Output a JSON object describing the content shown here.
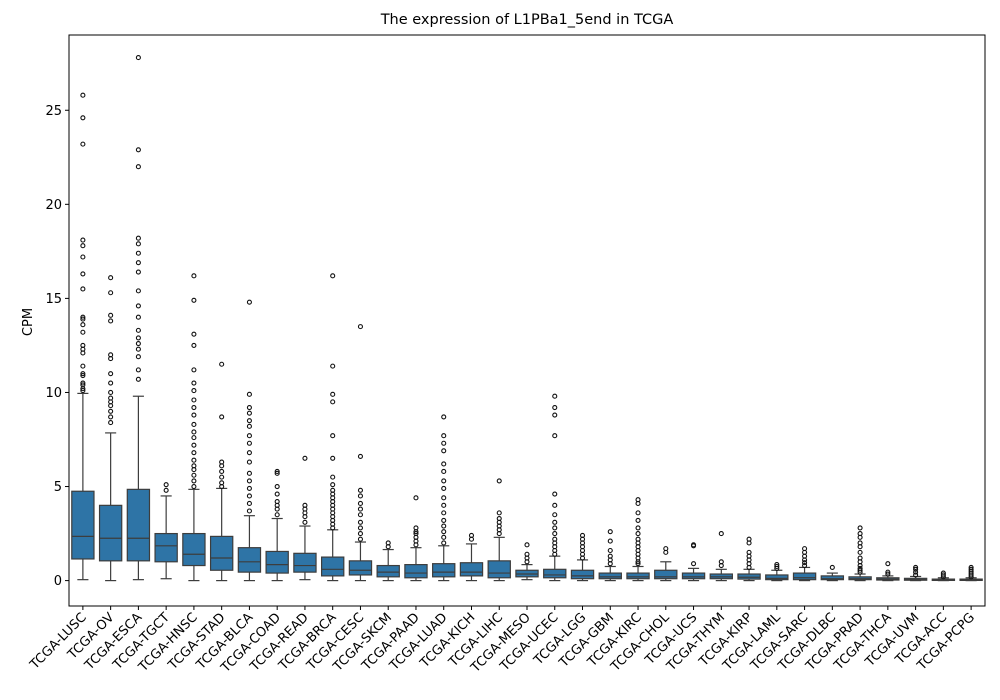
{
  "chart_data": {
    "type": "box",
    "title": "The expression of L1PBa1_5end in TCGA",
    "xlabel": "",
    "ylabel": "CPM",
    "ylim": [
      -1.35,
      29.0
    ],
    "yticks": [
      0,
      5,
      10,
      15,
      20,
      25
    ],
    "grid": false,
    "legend": "none",
    "box_color": "#2e74a6",
    "categories": [
      "TCGA-LUSC",
      "TCGA-OV",
      "TCGA-ESCA",
      "TCGA-TGCT",
      "TCGA-HNSC",
      "TCGA-STAD",
      "TCGA-BLCA",
      "TCGA-COAD",
      "TCGA-READ",
      "TCGA-BRCA",
      "TCGA-CESC",
      "TCGA-SKCM",
      "TCGA-PAAD",
      "TCGA-LUAD",
      "TCGA-KICH",
      "TCGA-LIHC",
      "TCGA-MESO",
      "TCGA-UCEC",
      "TCGA-LGG",
      "TCGA-GBM",
      "TCGA-KIRC",
      "TCGA-CHOL",
      "TCGA-UCS",
      "TCGA-THYM",
      "TCGA-KIRP",
      "TCGA-LAML",
      "TCGA-SARC",
      "TCGA-DLBC",
      "TCGA-PRAD",
      "TCGA-THCA",
      "TCGA-UVM",
      "TCGA-ACC",
      "TCGA-PCPG"
    ],
    "boxes": [
      {
        "whisker_low": 0.05,
        "q1": 1.15,
        "median": 2.35,
        "q3": 4.75,
        "whisker_high": 9.95,
        "outliers": [
          10.1,
          10.2,
          10.4,
          10.5,
          10.9,
          11.0,
          11.4,
          12.1,
          12.3,
          12.5,
          13.2,
          13.6,
          13.9,
          14.0,
          15.5,
          16.3,
          17.2,
          17.8,
          18.1,
          23.2,
          24.6,
          25.8
        ]
      },
      {
        "whisker_low": 0.0,
        "q1": 1.05,
        "median": 2.25,
        "q3": 4.0,
        "whisker_high": 7.85,
        "outliers": [
          8.4,
          8.7,
          9.0,
          9.3,
          9.5,
          9.7,
          10.0,
          10.5,
          11.0,
          11.8,
          12.0,
          13.8,
          14.1,
          15.3,
          16.1
        ]
      },
      {
        "whisker_low": 0.05,
        "q1": 1.05,
        "median": 2.25,
        "q3": 4.85,
        "whisker_high": 9.8,
        "outliers": [
          10.7,
          11.2,
          11.9,
          12.3,
          12.6,
          12.9,
          13.3,
          14.0,
          14.6,
          15.4,
          16.4,
          16.9,
          17.4,
          17.9,
          18.2,
          22.0,
          22.9,
          27.8
        ]
      },
      {
        "whisker_low": 0.1,
        "q1": 1.0,
        "median": 1.85,
        "q3": 2.5,
        "whisker_high": 4.5,
        "outliers": [
          4.8,
          5.1
        ]
      },
      {
        "whisker_low": 0.0,
        "q1": 0.8,
        "median": 1.4,
        "q3": 2.5,
        "whisker_high": 4.85,
        "outliers": [
          5.0,
          5.3,
          5.6,
          5.9,
          6.1,
          6.4,
          6.8,
          7.2,
          7.6,
          7.9,
          8.3,
          8.8,
          9.2,
          9.6,
          10.1,
          10.5,
          11.2,
          12.5,
          13.1,
          14.9,
          16.2
        ]
      },
      {
        "whisker_low": 0.0,
        "q1": 0.55,
        "median": 1.2,
        "q3": 2.35,
        "whisker_high": 4.9,
        "outliers": [
          5.0,
          5.2,
          5.5,
          5.8,
          6.1,
          6.3,
          8.7,
          11.5
        ]
      },
      {
        "whisker_low": 0.0,
        "q1": 0.45,
        "median": 1.0,
        "q3": 1.75,
        "whisker_high": 3.45,
        "outliers": [
          3.7,
          4.1,
          4.5,
          4.9,
          5.3,
          5.7,
          6.3,
          6.8,
          7.3,
          7.7,
          8.2,
          8.5,
          8.9,
          9.2,
          9.9,
          14.8
        ]
      },
      {
        "whisker_low": 0.0,
        "q1": 0.4,
        "median": 0.85,
        "q3": 1.55,
        "whisker_high": 3.3,
        "outliers": [
          3.5,
          3.8,
          4.0,
          4.2,
          4.6,
          5.0,
          5.7,
          5.8
        ]
      },
      {
        "whisker_low": 0.05,
        "q1": 0.45,
        "median": 0.8,
        "q3": 1.45,
        "whisker_high": 2.9,
        "outliers": [
          3.1,
          3.4,
          3.6,
          3.8,
          4.0,
          6.5
        ]
      },
      {
        "whisker_low": 0.0,
        "q1": 0.25,
        "median": 0.6,
        "q3": 1.25,
        "whisker_high": 2.7,
        "outliers": [
          2.8,
          3.0,
          3.2,
          3.4,
          3.6,
          3.8,
          4.0,
          4.2,
          4.4,
          4.6,
          4.8,
          5.1,
          5.5,
          6.5,
          7.7,
          9.5,
          9.9,
          11.4,
          16.2
        ]
      },
      {
        "whisker_low": 0.0,
        "q1": 0.3,
        "median": 0.55,
        "q3": 1.05,
        "whisker_high": 2.05,
        "outliers": [
          2.2,
          2.5,
          2.8,
          3.1,
          3.5,
          3.8,
          4.1,
          4.5,
          4.8,
          6.6,
          13.5
        ]
      },
      {
        "whisker_low": 0.0,
        "q1": 0.2,
        "median": 0.45,
        "q3": 0.8,
        "whisker_high": 1.65,
        "outliers": [
          1.8,
          2.0
        ]
      },
      {
        "whisker_low": 0.0,
        "q1": 0.15,
        "median": 0.4,
        "q3": 0.85,
        "whisker_high": 1.75,
        "outliers": [
          1.9,
          2.1,
          2.3,
          2.5,
          2.6,
          2.8,
          4.4
        ]
      },
      {
        "whisker_low": 0.0,
        "q1": 0.2,
        "median": 0.45,
        "q3": 0.9,
        "whisker_high": 1.85,
        "outliers": [
          2.0,
          2.3,
          2.6,
          2.9,
          3.2,
          3.6,
          4.0,
          4.4,
          4.9,
          5.3,
          5.8,
          6.2,
          6.9,
          7.3,
          7.7,
          8.7
        ]
      },
      {
        "whisker_low": 0.0,
        "q1": 0.25,
        "median": 0.45,
        "q3": 0.95,
        "whisker_high": 1.95,
        "outliers": [
          2.2,
          2.4
        ]
      },
      {
        "whisker_low": 0.0,
        "q1": 0.15,
        "median": 0.4,
        "q3": 1.05,
        "whisker_high": 2.3,
        "outliers": [
          2.5,
          2.7,
          2.9,
          3.1,
          3.3,
          3.6,
          5.3
        ]
      },
      {
        "whisker_low": 0.05,
        "q1": 0.2,
        "median": 0.35,
        "q3": 0.55,
        "whisker_high": 0.85,
        "outliers": [
          1.0,
          1.2,
          1.4,
          1.9
        ]
      },
      {
        "whisker_low": 0.0,
        "q1": 0.15,
        "median": 0.3,
        "q3": 0.6,
        "whisker_high": 1.3,
        "outliers": [
          1.4,
          1.6,
          1.8,
          2.0,
          2.2,
          2.5,
          2.8,
          3.1,
          3.5,
          4.0,
          4.6,
          7.7,
          8.8,
          9.2,
          9.8
        ]
      },
      {
        "whisker_low": 0.0,
        "q1": 0.1,
        "median": 0.25,
        "q3": 0.55,
        "whisker_high": 1.1,
        "outliers": [
          1.2,
          1.4,
          1.6,
          1.8,
          2.0,
          2.2,
          2.4
        ]
      },
      {
        "whisker_low": 0.0,
        "q1": 0.1,
        "median": 0.2,
        "q3": 0.4,
        "whisker_high": 0.75,
        "outliers": [
          0.9,
          1.1,
          1.3,
          1.6,
          2.1,
          2.6
        ]
      },
      {
        "whisker_low": 0.0,
        "q1": 0.1,
        "median": 0.2,
        "q3": 0.4,
        "whisker_high": 0.75,
        "outliers": [
          0.9,
          1.0,
          1.2,
          1.4,
          1.6,
          1.8,
          2.0,
          2.2,
          2.5,
          2.8,
          3.2,
          3.6,
          4.1,
          4.3
        ]
      },
      {
        "whisker_low": 0.0,
        "q1": 0.1,
        "median": 0.2,
        "q3": 0.55,
        "whisker_high": 1.0,
        "outliers": [
          1.5,
          1.7
        ]
      },
      {
        "whisker_low": 0.0,
        "q1": 0.1,
        "median": 0.2,
        "q3": 0.4,
        "whisker_high": 0.65,
        "outliers": [
          0.9,
          1.85,
          1.9
        ]
      },
      {
        "whisker_low": 0.0,
        "q1": 0.1,
        "median": 0.2,
        "q3": 0.35,
        "whisker_high": 0.6,
        "outliers": [
          0.8,
          1.0,
          2.5
        ]
      },
      {
        "whisker_low": 0.0,
        "q1": 0.08,
        "median": 0.18,
        "q3": 0.35,
        "whisker_high": 0.6,
        "outliers": [
          0.7,
          0.9,
          1.1,
          1.3,
          1.5,
          2.0,
          2.2
        ]
      },
      {
        "whisker_low": 0.0,
        "q1": 0.05,
        "median": 0.12,
        "q3": 0.3,
        "whisker_high": 0.55,
        "outliers": [
          0.65,
          0.75,
          0.85
        ]
      },
      {
        "whisker_low": 0.0,
        "q1": 0.05,
        "median": 0.15,
        "q3": 0.4,
        "whisker_high": 0.7,
        "outliers": [
          0.8,
          0.95,
          1.1,
          1.3,
          1.5,
          1.7
        ]
      },
      {
        "whisker_low": 0.0,
        "q1": 0.05,
        "median": 0.1,
        "q3": 0.25,
        "whisker_high": 0.4,
        "outliers": [
          0.7
        ]
      },
      {
        "whisker_low": 0.0,
        "q1": 0.05,
        "median": 0.1,
        "q3": 0.2,
        "whisker_high": 0.35,
        "outliers": [
          0.45,
          0.55,
          0.65,
          0.8,
          1.0,
          1.2,
          1.5,
          1.8,
          2.0,
          2.3,
          2.5,
          2.8
        ]
      },
      {
        "whisker_low": 0.0,
        "q1": 0.03,
        "median": 0.08,
        "q3": 0.15,
        "whisker_high": 0.25,
        "outliers": [
          0.35,
          0.45,
          0.9
        ]
      },
      {
        "whisker_low": 0.0,
        "q1": 0.02,
        "median": 0.05,
        "q3": 0.12,
        "whisker_high": 0.22,
        "outliers": [
          0.3,
          0.45,
          0.6,
          0.7
        ]
      },
      {
        "whisker_low": 0.0,
        "q1": 0.01,
        "median": 0.03,
        "q3": 0.08,
        "whisker_high": 0.15,
        "outliers": [
          0.2,
          0.3,
          0.4
        ]
      },
      {
        "whisker_low": 0.0,
        "q1": 0.01,
        "median": 0.03,
        "q3": 0.08,
        "whisker_high": 0.15,
        "outliers": [
          0.2,
          0.3,
          0.4,
          0.5,
          0.6,
          0.7
        ]
      }
    ]
  }
}
